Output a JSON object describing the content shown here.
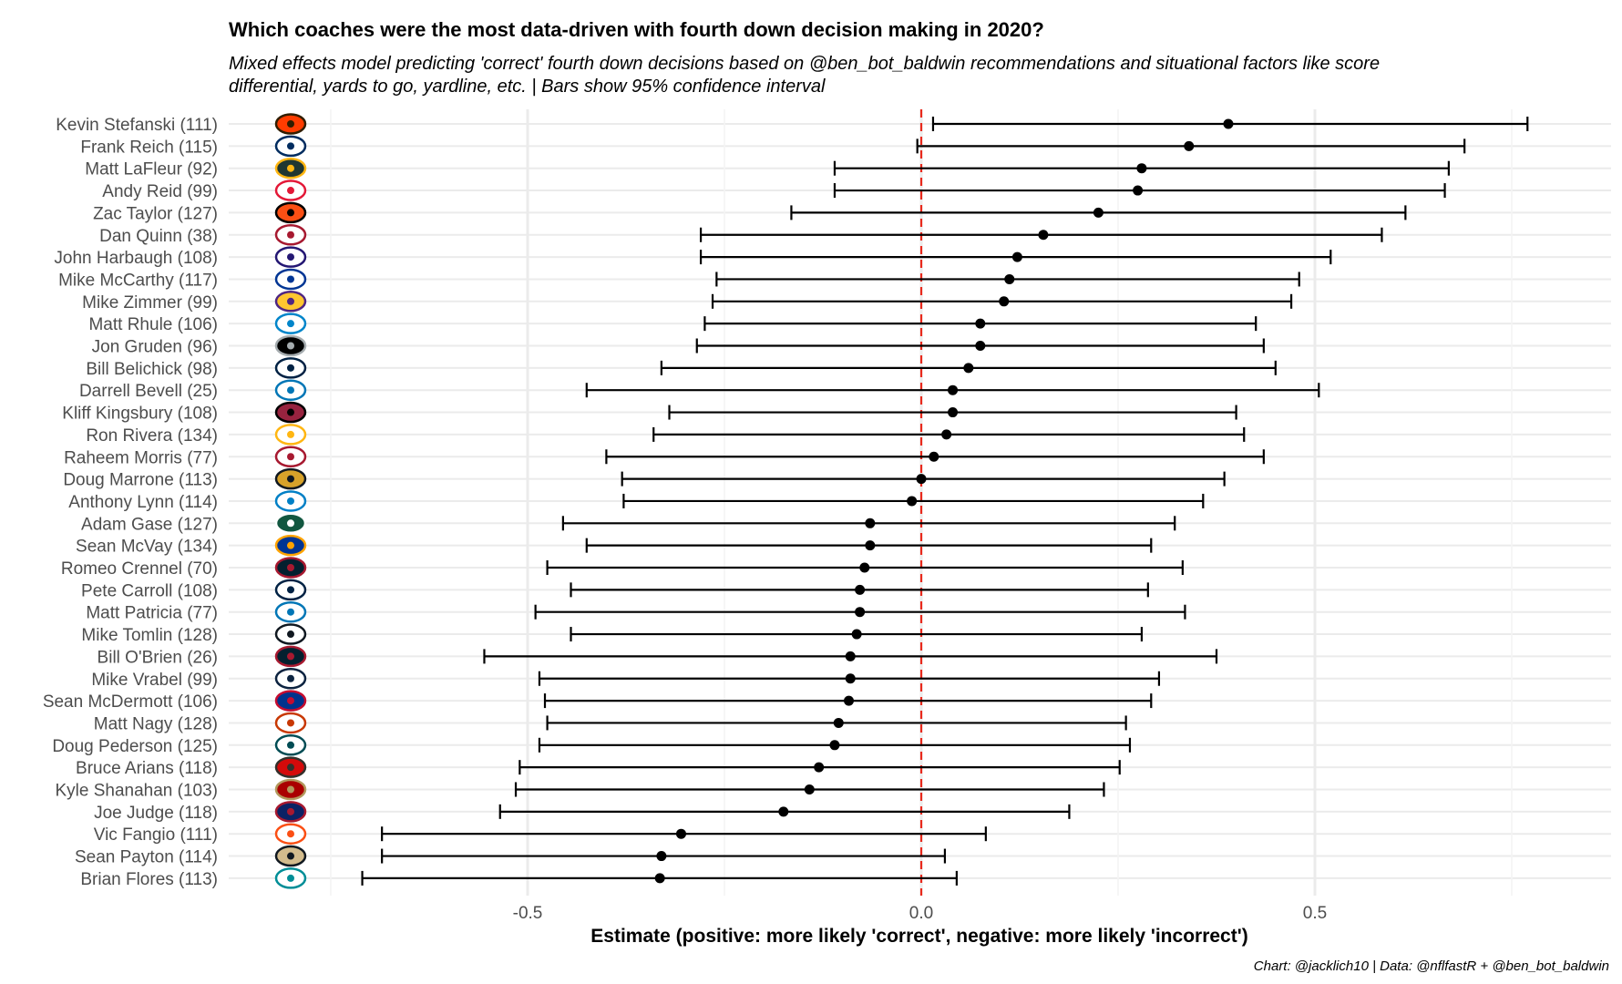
{
  "chart_data": {
    "type": "scatter",
    "title": "Which coaches were the most data-driven with fourth down decision making in 2020?",
    "subtitle": "Mixed effects model predicting 'correct' fourth down decisions based on @ben_bot_baldwin recommendations and situational factors like score differential, yards to go, yardline, etc. | Bars show 95% confidence interval",
    "xlabel": "Estimate (positive: more likely 'correct', negative: more likely 'incorrect')",
    "ylabel": "",
    "caption": "Chart: @jacklich10 | Data: @nflfastR + @ben_bot_baldwin",
    "xlim": [
      -0.88,
      0.88
    ],
    "xticks": [
      -0.5,
      0.0,
      0.5
    ],
    "xtick_labels": [
      "-0.5",
      "0.0",
      "0.5"
    ],
    "reference_line": {
      "x": 0.0,
      "color": "#e8291c",
      "style": "dashed"
    },
    "grid": true,
    "colors": {
      "point": "#000000",
      "errorbar": "#000000",
      "grid": "#ebebeb",
      "label": "#4d4d4d"
    },
    "rows": [
      {
        "label": "Kevin Stefanski (111)",
        "team_icon": "browns-helmet-icon",
        "estimate": 0.39,
        "lower": 0.015,
        "upper": 0.77
      },
      {
        "label": "Frank Reich (115)",
        "team_icon": "colts-horseshoe-icon",
        "estimate": 0.34,
        "lower": -0.005,
        "upper": 0.69
      },
      {
        "label": "Matt LaFleur (92)",
        "team_icon": "packers-g-icon",
        "estimate": 0.28,
        "lower": -0.11,
        "upper": 0.67
      },
      {
        "label": "Andy Reid (99)",
        "team_icon": "chiefs-arrowhead-icon",
        "estimate": 0.275,
        "lower": -0.11,
        "upper": 0.665
      },
      {
        "label": "Zac Taylor (127)",
        "team_icon": "bengals-b-icon",
        "estimate": 0.225,
        "lower": -0.165,
        "upper": 0.615
      },
      {
        "label": "Dan Quinn (38)",
        "team_icon": "falcons-bird-icon",
        "estimate": 0.155,
        "lower": -0.28,
        "upper": 0.585
      },
      {
        "label": "John Harbaugh (108)",
        "team_icon": "ravens-bird-icon",
        "estimate": 0.122,
        "lower": -0.28,
        "upper": 0.52
      },
      {
        "label": "Mike McCarthy (117)",
        "team_icon": "cowboys-star-icon",
        "estimate": 0.112,
        "lower": -0.26,
        "upper": 0.48
      },
      {
        "label": "Mike Zimmer (99)",
        "team_icon": "vikings-horn-icon",
        "estimate": 0.105,
        "lower": -0.265,
        "upper": 0.47
      },
      {
        "label": "Matt Rhule (106)",
        "team_icon": "panthers-cat-icon",
        "estimate": 0.075,
        "lower": -0.275,
        "upper": 0.425
      },
      {
        "label": "Jon Gruden (96)",
        "team_icon": "raiders-shield-icon",
        "estimate": 0.075,
        "lower": -0.285,
        "upper": 0.435
      },
      {
        "label": "Bill Belichick (98)",
        "team_icon": "patriots-head-icon",
        "estimate": 0.06,
        "lower": -0.33,
        "upper": 0.45
      },
      {
        "label": "Darrell Bevell (25)",
        "team_icon": "lions-lion-icon",
        "estimate": 0.04,
        "lower": -0.425,
        "upper": 0.505
      },
      {
        "label": "Kliff Kingsbury (108)",
        "team_icon": "cardinals-bird-icon",
        "estimate": 0.04,
        "lower": -0.32,
        "upper": 0.4
      },
      {
        "label": "Ron Rivera (134)",
        "team_icon": "washington-w-icon",
        "estimate": 0.032,
        "lower": -0.34,
        "upper": 0.41
      },
      {
        "label": "Raheem Morris (77)",
        "team_icon": "falcons-bird-icon",
        "estimate": 0.016,
        "lower": -0.4,
        "upper": 0.435
      },
      {
        "label": "Doug Marrone (113)",
        "team_icon": "jaguars-cat-icon",
        "estimate": 0.0,
        "lower": -0.38,
        "upper": 0.385
      },
      {
        "label": "Anthony Lynn (114)",
        "team_icon": "chargers-bolt-icon",
        "estimate": -0.012,
        "lower": -0.378,
        "upper": 0.358
      },
      {
        "label": "Adam Gase (127)",
        "team_icon": "jets-oval-icon",
        "estimate": -0.065,
        "lower": -0.455,
        "upper": 0.322
      },
      {
        "label": "Sean McVay (134)",
        "team_icon": "rams-horn-icon",
        "estimate": -0.065,
        "lower": -0.425,
        "upper": 0.292
      },
      {
        "label": "Romeo Crennel (70)",
        "team_icon": "texans-bull-icon",
        "estimate": -0.072,
        "lower": -0.475,
        "upper": 0.332
      },
      {
        "label": "Pete Carroll (108)",
        "team_icon": "seahawks-bird-icon",
        "estimate": -0.078,
        "lower": -0.445,
        "upper": 0.288
      },
      {
        "label": "Matt Patricia (77)",
        "team_icon": "lions-lion-icon",
        "estimate": -0.078,
        "lower": -0.49,
        "upper": 0.335
      },
      {
        "label": "Mike Tomlin (128)",
        "team_icon": "steelers-logo-icon",
        "estimate": -0.082,
        "lower": -0.445,
        "upper": 0.28
      },
      {
        "label": "Bill O'Brien (26)",
        "team_icon": "texans-bull-icon",
        "estimate": -0.09,
        "lower": -0.555,
        "upper": 0.375
      },
      {
        "label": "Mike Vrabel (99)",
        "team_icon": "titans-t-icon",
        "estimate": -0.09,
        "lower": -0.485,
        "upper": 0.302
      },
      {
        "label": "Sean McDermott (106)",
        "team_icon": "bills-buffalo-icon",
        "estimate": -0.092,
        "lower": -0.478,
        "upper": 0.292
      },
      {
        "label": "Matt Nagy (128)",
        "team_icon": "bears-c-icon",
        "estimate": -0.105,
        "lower": -0.475,
        "upper": 0.26
      },
      {
        "label": "Doug Pederson (125)",
        "team_icon": "eagles-head-icon",
        "estimate": -0.11,
        "lower": -0.485,
        "upper": 0.265
      },
      {
        "label": "Bruce Arians (118)",
        "team_icon": "buccaneers-flag-icon",
        "estimate": -0.13,
        "lower": -0.51,
        "upper": 0.252
      },
      {
        "label": "Kyle Shanahan (103)",
        "team_icon": "49ers-oval-icon",
        "estimate": -0.142,
        "lower": -0.515,
        "upper": 0.232
      },
      {
        "label": "Joe Judge (118)",
        "team_icon": "giants-ny-icon",
        "estimate": -0.175,
        "lower": -0.535,
        "upper": 0.188
      },
      {
        "label": "Vic Fangio (111)",
        "team_icon": "broncos-horse-icon",
        "estimate": -0.305,
        "lower": -0.685,
        "upper": 0.082
      },
      {
        "label": "Sean Payton (114)",
        "team_icon": "saints-fleur-icon",
        "estimate": -0.33,
        "lower": -0.685,
        "upper": 0.03
      },
      {
        "label": "Brian Flores (113)",
        "team_icon": "dolphins-dolphin-icon",
        "estimate": -0.332,
        "lower": -0.71,
        "upper": 0.045
      }
    ]
  }
}
